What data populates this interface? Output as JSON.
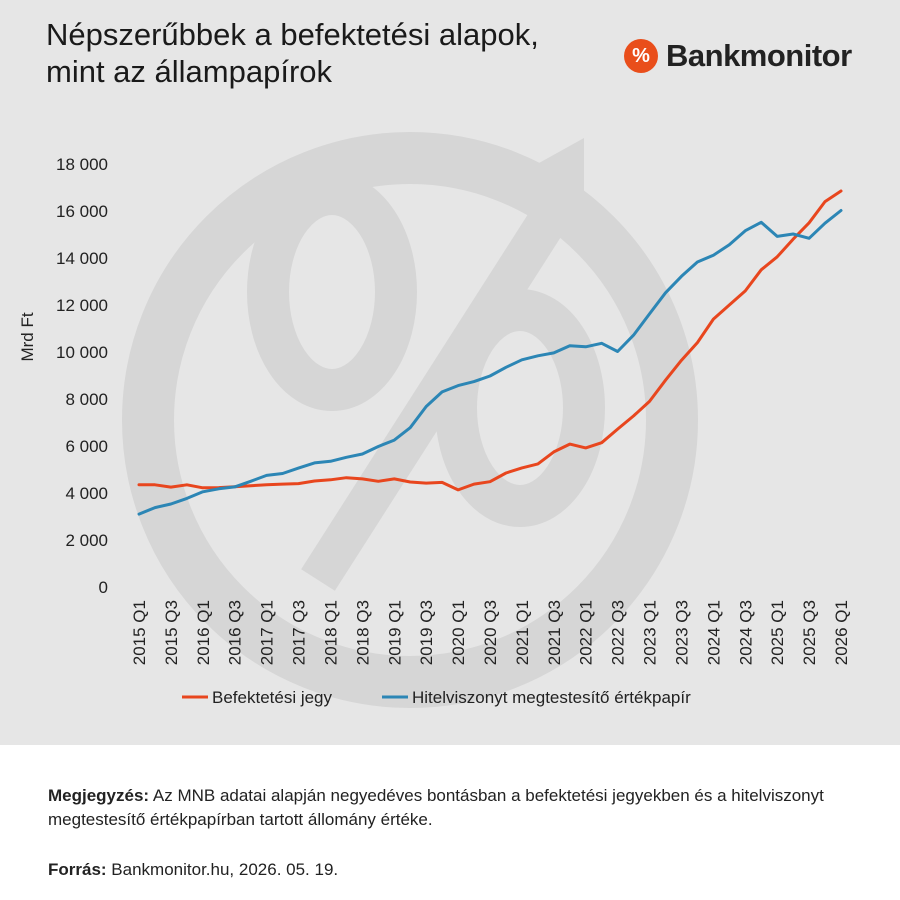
{
  "title_lines": [
    "Népszerűbbek a befektetési alapok,",
    "mint az állampapírok"
  ],
  "logo": {
    "icon": "%",
    "text": "Bankmonitor",
    "accent_color": "#e94e1b"
  },
  "note": {
    "label": "Megjegyzés:",
    "text": " Az MNB adatai alapján negyedéves bontásban a befektetési jegyekben és a hitelviszonyt megtestesítő értékpapírban tartott állomány értéke."
  },
  "source": {
    "label": "Forrás:",
    "text": " Bankmonitor.hu, 2026. 05. 19."
  },
  "chart_data": {
    "type": "line",
    "title": "Népszerűbbek a befektetési alapok, mint az állampapírok",
    "ylabel": "Mrd Ft",
    "xlabel": "",
    "ylim": [
      0,
      18000
    ],
    "yticks": [
      0,
      2000,
      4000,
      6000,
      8000,
      10000,
      12000,
      14000,
      16000,
      18000
    ],
    "ytick_labels": [
      "0",
      "2 000",
      "4 000",
      "6 000",
      "8 000",
      "10 000",
      "12 000",
      "14 000",
      "16 000",
      "18 000"
    ],
    "grid": false,
    "legend_position": "bottom",
    "x": [
      "2015 Q1",
      "2015 Q2",
      "2015 Q3",
      "2015 Q4",
      "2016 Q1",
      "2016 Q2",
      "2016 Q3",
      "2016 Q4",
      "2017 Q1",
      "2017 Q2",
      "2017 Q3",
      "2017 Q4",
      "2018 Q1",
      "2018 Q2",
      "2018 Q3",
      "2018 Q4",
      "2019 Q1",
      "2019 Q2",
      "2019 Q3",
      "2019 Q4",
      "2020 Q1",
      "2020 Q2",
      "2020 Q3",
      "2020 Q4",
      "2021 Q1",
      "2021 Q2",
      "2021 Q3",
      "2021 Q4",
      "2022 Q1",
      "2022 Q2",
      "2022 Q3",
      "2022 Q4",
      "2023 Q1",
      "2023 Q2",
      "2023 Q3",
      "2023 Q4",
      "2024 Q1",
      "2024 Q2",
      "2024 Q3",
      "2024 Q4",
      "2025 Q1",
      "2025 Q2",
      "2025 Q3",
      "2025 Q4",
      "2026 Q1"
    ],
    "xtick_labels": [
      "2015 Q1",
      "",
      "2015 Q3",
      "",
      "2016 Q1",
      "",
      "2016 Q3",
      "",
      "2017 Q1",
      "",
      "2017 Q3",
      "",
      "2018 Q1",
      "",
      "2018 Q3",
      "",
      "2019 Q1",
      "",
      "2019 Q3",
      "",
      "2020 Q1",
      "",
      "2020 Q3",
      "",
      "2021 Q1",
      "",
      "2021 Q3",
      "",
      "2022 Q1",
      "",
      "2022 Q3",
      "",
      "2023 Q1",
      "",
      "2023 Q3",
      "",
      "2024 Q1",
      "",
      "2024 Q3",
      "",
      "2025 Q1",
      "",
      "2025 Q3",
      "",
      "2026 Q1"
    ],
    "series": [
      {
        "name": "Befektetési jegy",
        "color": "#e8461e",
        "values": [
          4350,
          4350,
          4250,
          4350,
          4220,
          4230,
          4270,
          4310,
          4350,
          4380,
          4400,
          4510,
          4560,
          4650,
          4600,
          4500,
          4600,
          4470,
          4420,
          4450,
          4130,
          4380,
          4480,
          4850,
          5070,
          5240,
          5750,
          6080,
          5920,
          6140,
          6720,
          7280,
          7900,
          8800,
          9650,
          10400,
          11400,
          12000,
          12600,
          13500,
          14050,
          14800,
          15500,
          16400,
          16850
        ]
      },
      {
        "name": "Hitelviszonyt megtestesítő értékpapír",
        "color": "#2c86b5",
        "values": [
          3100,
          3380,
          3530,
          3770,
          4050,
          4180,
          4260,
          4500,
          4750,
          4830,
          5060,
          5280,
          5350,
          5520,
          5660,
          5980,
          6250,
          6780,
          7680,
          8300,
          8570,
          8740,
          8980,
          9350,
          9670,
          9840,
          9960,
          10270,
          10220,
          10370,
          10020,
          10720,
          11620,
          12520,
          13220,
          13830,
          14120,
          14560,
          15160,
          15520,
          14920,
          15020,
          14840,
          15480,
          16020
        ]
      }
    ]
  }
}
